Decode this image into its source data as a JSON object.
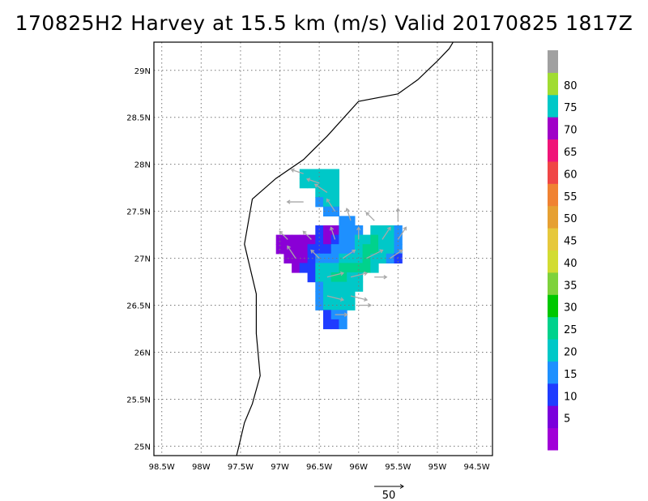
{
  "title": "170825H2 Harvey at 15.5 km (m/s) Valid 20170825 1817Z",
  "map": {
    "lon_range": [
      -98.6,
      -94.3
    ],
    "lat_range": [
      24.9,
      29.3
    ],
    "x_ticks": [
      {
        "lon": -98.5,
        "label": "98.5W"
      },
      {
        "lon": -98.0,
        "label": "98W"
      },
      {
        "lon": -97.5,
        "label": "97.5W"
      },
      {
        "lon": -97.0,
        "label": "97W"
      },
      {
        "lon": -96.5,
        "label": "96.5W"
      },
      {
        "lon": -96.0,
        "label": "96W"
      },
      {
        "lon": -95.5,
        "label": "95.5W"
      },
      {
        "lon": -95.0,
        "label": "95W"
      },
      {
        "lon": -94.5,
        "label": "94.5W"
      }
    ],
    "y_ticks": [
      {
        "lat": 25.0,
        "label": "25N"
      },
      {
        "lat": 25.5,
        "label": "25.5N"
      },
      {
        "lat": 26.0,
        "label": "26N"
      },
      {
        "lat": 26.5,
        "label": "26.5N"
      },
      {
        "lat": 27.0,
        "label": "27N"
      },
      {
        "lat": 27.5,
        "label": "27.5N"
      },
      {
        "lat": 28.0,
        "label": "28N"
      },
      {
        "lat": 28.5,
        "label": "28.5N"
      },
      {
        "lat": 29.0,
        "label": "29N"
      }
    ],
    "grid": true,
    "coastline": [
      [
        -94.8,
        29.3
      ],
      [
        -94.85,
        29.23
      ],
      [
        -95.0,
        29.1
      ],
      [
        -95.25,
        28.9
      ],
      [
        -95.5,
        28.75
      ],
      [
        -96.0,
        28.67
      ],
      [
        -96.4,
        28.3
      ],
      [
        -96.7,
        28.05
      ],
      [
        -97.05,
        27.85
      ],
      [
        -97.35,
        27.63
      ],
      [
        -97.45,
        27.15
      ],
      [
        -97.3,
        26.62
      ],
      [
        -97.3,
        26.2
      ],
      [
        -97.25,
        25.75
      ],
      [
        -97.35,
        25.45
      ],
      [
        -97.45,
        25.25
      ],
      [
        -97.55,
        24.9
      ]
    ]
  },
  "wind_field": {
    "cell_size_deg": 0.1,
    "level_colors": {
      "5": "#8a00d6",
      "10": "#1f3cff",
      "15": "#1e90ff",
      "20": "#00c8c8",
      "25": "#00d28c"
    },
    "cells": [
      [
        -96.7,
        27.9,
        "20"
      ],
      [
        -96.6,
        27.9,
        "20"
      ],
      [
        -96.5,
        27.9,
        "20"
      ],
      [
        -96.4,
        27.9,
        "20"
      ],
      [
        -96.3,
        27.9,
        "20"
      ],
      [
        -96.7,
        27.8,
        "20"
      ],
      [
        -96.6,
        27.8,
        "20"
      ],
      [
        -96.5,
        27.8,
        "20"
      ],
      [
        -96.4,
        27.8,
        "20"
      ],
      [
        -96.3,
        27.8,
        "20"
      ],
      [
        -96.5,
        27.7,
        "20"
      ],
      [
        -96.4,
        27.7,
        "20"
      ],
      [
        -96.3,
        27.7,
        "20"
      ],
      [
        -96.5,
        27.6,
        "15"
      ],
      [
        -96.4,
        27.6,
        "20"
      ],
      [
        -96.3,
        27.6,
        "20"
      ],
      [
        -96.4,
        27.5,
        "15"
      ],
      [
        -96.3,
        27.5,
        "15"
      ],
      [
        -96.2,
        27.4,
        "15"
      ],
      [
        -96.1,
        27.4,
        "15"
      ],
      [
        -96.5,
        27.3,
        "10"
      ],
      [
        -96.4,
        27.3,
        "5"
      ],
      [
        -96.3,
        27.3,
        "5"
      ],
      [
        -96.2,
        27.3,
        "15"
      ],
      [
        -96.1,
        27.3,
        "15"
      ],
      [
        -96.0,
        27.3,
        "15"
      ],
      [
        -95.8,
        27.3,
        "20"
      ],
      [
        -95.7,
        27.3,
        "20"
      ],
      [
        -95.6,
        27.3,
        "20"
      ],
      [
        -95.5,
        27.3,
        "15"
      ],
      [
        -97.0,
        27.2,
        "5"
      ],
      [
        -96.9,
        27.2,
        "5"
      ],
      [
        -96.8,
        27.2,
        "5"
      ],
      [
        -96.7,
        27.2,
        "5"
      ],
      [
        -96.6,
        27.2,
        "5"
      ],
      [
        -96.5,
        27.2,
        "10"
      ],
      [
        -96.4,
        27.2,
        "5"
      ],
      [
        -96.3,
        27.2,
        "10"
      ],
      [
        -96.2,
        27.2,
        "15"
      ],
      [
        -96.1,
        27.2,
        "15"
      ],
      [
        -96.0,
        27.2,
        "20"
      ],
      [
        -95.9,
        27.2,
        "20"
      ],
      [
        -95.8,
        27.2,
        "25"
      ],
      [
        -95.7,
        27.2,
        "20"
      ],
      [
        -95.6,
        27.2,
        "20"
      ],
      [
        -95.5,
        27.2,
        "15"
      ],
      [
        -97.0,
        27.1,
        "5"
      ],
      [
        -96.9,
        27.1,
        "5"
      ],
      [
        -96.8,
        27.1,
        "5"
      ],
      [
        -96.7,
        27.1,
        "5"
      ],
      [
        -96.6,
        27.1,
        "10"
      ],
      [
        -96.5,
        27.1,
        "10"
      ],
      [
        -96.4,
        27.1,
        "10"
      ],
      [
        -96.3,
        27.1,
        "15"
      ],
      [
        -96.2,
        27.1,
        "15"
      ],
      [
        -96.1,
        27.1,
        "15"
      ],
      [
        -96.0,
        27.1,
        "20"
      ],
      [
        -95.9,
        27.1,
        "25"
      ],
      [
        -95.8,
        27.1,
        "25"
      ],
      [
        -95.7,
        27.1,
        "20"
      ],
      [
        -95.6,
        27.1,
        "20"
      ],
      [
        -95.5,
        27.1,
        "15"
      ],
      [
        -96.9,
        27.0,
        "5"
      ],
      [
        -96.8,
        27.0,
        "5"
      ],
      [
        -96.7,
        27.0,
        "5"
      ],
      [
        -96.6,
        27.0,
        "10"
      ],
      [
        -96.5,
        27.0,
        "15"
      ],
      [
        -96.4,
        27.0,
        "15"
      ],
      [
        -96.3,
        27.0,
        "15"
      ],
      [
        -96.2,
        27.0,
        "20"
      ],
      [
        -96.1,
        27.0,
        "20"
      ],
      [
        -96.0,
        27.0,
        "20"
      ],
      [
        -95.9,
        27.0,
        "25"
      ],
      [
        -95.8,
        27.0,
        "20"
      ],
      [
        -95.7,
        27.0,
        "20"
      ],
      [
        -95.6,
        27.0,
        "15"
      ],
      [
        -95.5,
        27.0,
        "10"
      ],
      [
        -96.8,
        26.9,
        "5"
      ],
      [
        -96.7,
        26.9,
        "10"
      ],
      [
        -96.6,
        26.9,
        "10"
      ],
      [
        -96.5,
        26.9,
        "20"
      ],
      [
        -96.4,
        26.9,
        "20"
      ],
      [
        -96.3,
        26.9,
        "20"
      ],
      [
        -96.2,
        26.9,
        "25"
      ],
      [
        -96.1,
        26.9,
        "25"
      ],
      [
        -96.0,
        26.9,
        "25"
      ],
      [
        -95.9,
        26.9,
        "25"
      ],
      [
        -95.8,
        26.9,
        "20"
      ],
      [
        -96.6,
        26.8,
        "10"
      ],
      [
        -96.5,
        26.8,
        "20"
      ],
      [
        -96.4,
        26.8,
        "20"
      ],
      [
        -96.3,
        26.8,
        "25"
      ],
      [
        -96.2,
        26.8,
        "25"
      ],
      [
        -96.1,
        26.8,
        "20"
      ],
      [
        -96.0,
        26.8,
        "20"
      ],
      [
        -96.5,
        26.7,
        "15"
      ],
      [
        -96.4,
        26.7,
        "20"
      ],
      [
        -96.3,
        26.7,
        "20"
      ],
      [
        -96.2,
        26.7,
        "20"
      ],
      [
        -96.1,
        26.7,
        "20"
      ],
      [
        -96.0,
        26.7,
        "20"
      ],
      [
        -96.5,
        26.6,
        "15"
      ],
      [
        -96.4,
        26.6,
        "20"
      ],
      [
        -96.3,
        26.6,
        "20"
      ],
      [
        -96.2,
        26.6,
        "20"
      ],
      [
        -96.1,
        26.6,
        "20"
      ],
      [
        -96.5,
        26.5,
        "15"
      ],
      [
        -96.4,
        26.5,
        "20"
      ],
      [
        -96.3,
        26.5,
        "20"
      ],
      [
        -96.2,
        26.5,
        "20"
      ],
      [
        -96.1,
        26.5,
        "20"
      ],
      [
        -96.4,
        26.4,
        "10"
      ],
      [
        -96.3,
        26.4,
        "15"
      ],
      [
        -96.2,
        26.4,
        "15"
      ],
      [
        -96.4,
        26.3,
        "10"
      ],
      [
        -96.3,
        26.3,
        "10"
      ],
      [
        -96.2,
        26.3,
        "15"
      ]
    ]
  },
  "wind_vectors": {
    "color": "#a8a8a8",
    "vectors": [
      [
        -96.7,
        27.9,
        -3,
        1
      ],
      [
        -96.5,
        27.8,
        -3,
        1
      ],
      [
        -96.4,
        27.7,
        -3,
        2
      ],
      [
        -96.7,
        27.6,
        -4,
        0
      ],
      [
        -96.3,
        27.5,
        -2,
        3
      ],
      [
        -96.1,
        27.4,
        -1,
        3
      ],
      [
        -95.8,
        27.4,
        -2,
        2
      ],
      [
        -95.5,
        27.4,
        0,
        3
      ],
      [
        -96.9,
        27.2,
        -2,
        2
      ],
      [
        -96.6,
        27.2,
        -2,
        2
      ],
      [
        -96.3,
        27.2,
        -1,
        3
      ],
      [
        -96.0,
        27.2,
        0,
        3
      ],
      [
        -95.7,
        27.2,
        2,
        3
      ],
      [
        -95.5,
        27.2,
        2,
        3
      ],
      [
        -96.8,
        27.0,
        -2,
        3
      ],
      [
        -96.5,
        27.0,
        -2,
        2
      ],
      [
        -96.2,
        27.0,
        3,
        2
      ],
      [
        -95.9,
        27.0,
        4,
        2
      ],
      [
        -95.6,
        27.0,
        3,
        2
      ],
      [
        -96.4,
        26.8,
        4,
        1
      ],
      [
        -96.1,
        26.8,
        4,
        1
      ],
      [
        -95.8,
        26.8,
        3,
        0
      ],
      [
        -96.4,
        26.6,
        4,
        -1
      ],
      [
        -96.1,
        26.6,
        4,
        -1
      ],
      [
        -96.3,
        26.4,
        3,
        0
      ],
      [
        -96.0,
        26.5,
        3,
        0
      ]
    ]
  },
  "legend": {
    "labels": [
      "5",
      "10",
      "15",
      "20",
      "25",
      "30",
      "35",
      "40",
      "45",
      "50",
      "55",
      "60",
      "65",
      "70",
      "75",
      "80"
    ],
    "colors": [
      "#a100d8",
      "#7a00dc",
      "#1f3cff",
      "#1e90ff",
      "#00c8c8",
      "#00d28c",
      "#00c800",
      "#7ed23c",
      "#d2dc32",
      "#e6c83c",
      "#e6a032",
      "#f08232",
      "#f04646",
      "#f01478",
      "#a000c8",
      "#00c8c8",
      "#a0dc32",
      "#a0a0a0"
    ]
  },
  "reference_vector": {
    "label": "50"
  }
}
